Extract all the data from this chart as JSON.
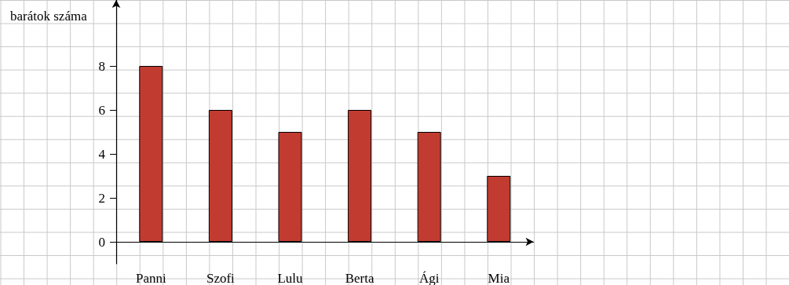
{
  "chart_data": {
    "type": "bar",
    "ylabel": "barátok száma",
    "categories": [
      "Panni",
      "Szofi",
      "Lulu",
      "Berta",
      "Ági",
      "Mia"
    ],
    "values": [
      8,
      6,
      5,
      6,
      5,
      3
    ],
    "color": "#c23b30",
    "ylim": [
      -1,
      11
    ],
    "yticks": [
      0,
      2,
      4,
      6,
      8
    ],
    "grid": false
  }
}
